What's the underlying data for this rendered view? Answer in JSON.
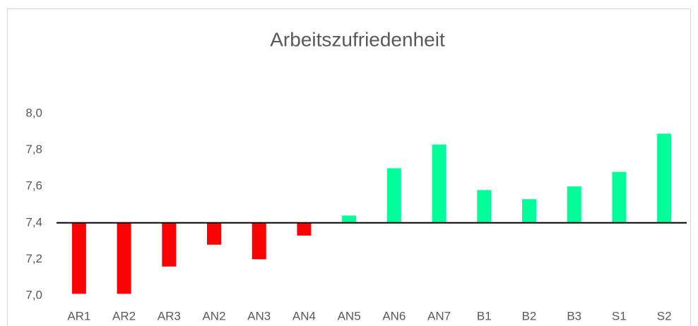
{
  "chart_data": {
    "type": "bar",
    "title": "Arbeitszufriedenheit",
    "categories": [
      "AR1",
      "AR2",
      "AR3",
      "AN2",
      "AN3",
      "AN4",
      "AN5",
      "AN6",
      "AN7",
      "B1",
      "B2",
      "B3",
      "S1",
      "S2"
    ],
    "values": [
      7.01,
      7.01,
      7.16,
      7.28,
      7.2,
      7.33,
      7.44,
      7.7,
      7.83,
      7.58,
      7.53,
      7.6,
      7.68,
      7.89
    ],
    "baseline": 7.4,
    "color_below": "#ff0000",
    "color_above": "#00ff99",
    "ylim": [
      7.0,
      8.0
    ],
    "yticks": [
      {
        "value": 7.0,
        "label": "7,0"
      },
      {
        "value": 7.2,
        "label": "7,2"
      },
      {
        "value": 7.4,
        "label": "7,4"
      },
      {
        "value": 7.6,
        "label": "7,6"
      },
      {
        "value": 7.8,
        "label": "7,8"
      },
      {
        "value": 8.0,
        "label": "8,0"
      }
    ],
    "grid": false
  }
}
